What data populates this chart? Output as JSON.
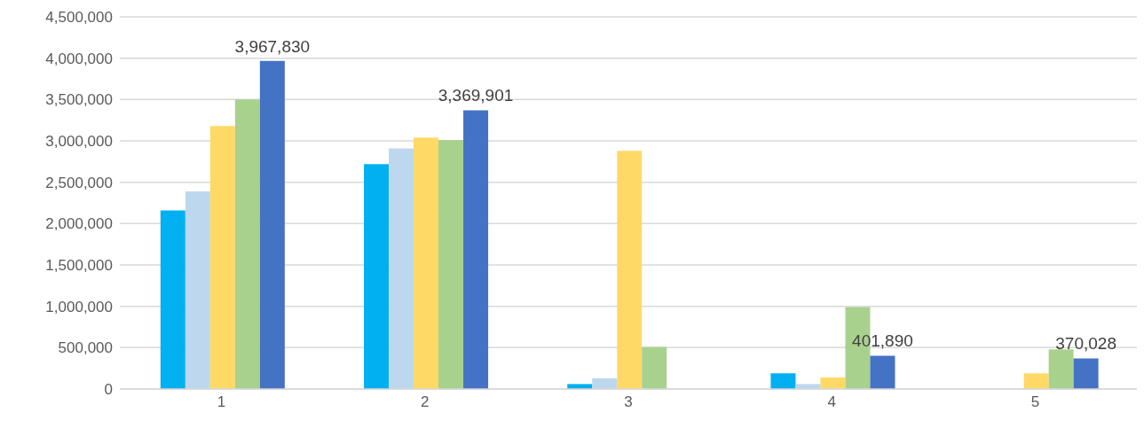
{
  "chart_data": {
    "type": "bar",
    "categories": [
      "1",
      "2",
      "3",
      "4",
      "5"
    ],
    "series": [
      {
        "color": "#00b0f0",
        "values": [
          2160000,
          2720000,
          60000,
          190000,
          null
        ]
      },
      {
        "color": "#bdd7ee",
        "values": [
          2390000,
          2910000,
          130000,
          60000,
          null
        ]
      },
      {
        "color": "#ffd966",
        "values": [
          3180000,
          3040000,
          2880000,
          140000,
          190000
        ]
      },
      {
        "color": "#a9d18e",
        "values": [
          3500000,
          3010000,
          510000,
          990000,
          480000
        ]
      },
      {
        "color": "#4472c4",
        "values": [
          3967830,
          3369901,
          null,
          401890,
          370028
        ],
        "value_labels": [
          "3,967,830",
          "3,369,901",
          null,
          "401,890",
          "370,028"
        ]
      }
    ],
    "ylim": [
      0,
      4500000
    ],
    "yticks": [
      0,
      {
        "value": 500000,
        "label": "500,000"
      },
      {
        "value": 1000000,
        "label": "1,000,000"
      },
      {
        "value": 1500000,
        "label": "1,500,000"
      },
      {
        "value": 2000000,
        "label": "2,000,000"
      },
      {
        "value": 2500000,
        "label": "2,500,000"
      },
      {
        "value": 3000000,
        "label": "3,000,000"
      },
      {
        "value": 3500000,
        "label": "3,500,000"
      },
      {
        "value": 4000000,
        "label": "4,000,000"
      },
      {
        "value": 4500000,
        "label": "4,500,000"
      }
    ],
    "grid": "y",
    "legend": false
  }
}
